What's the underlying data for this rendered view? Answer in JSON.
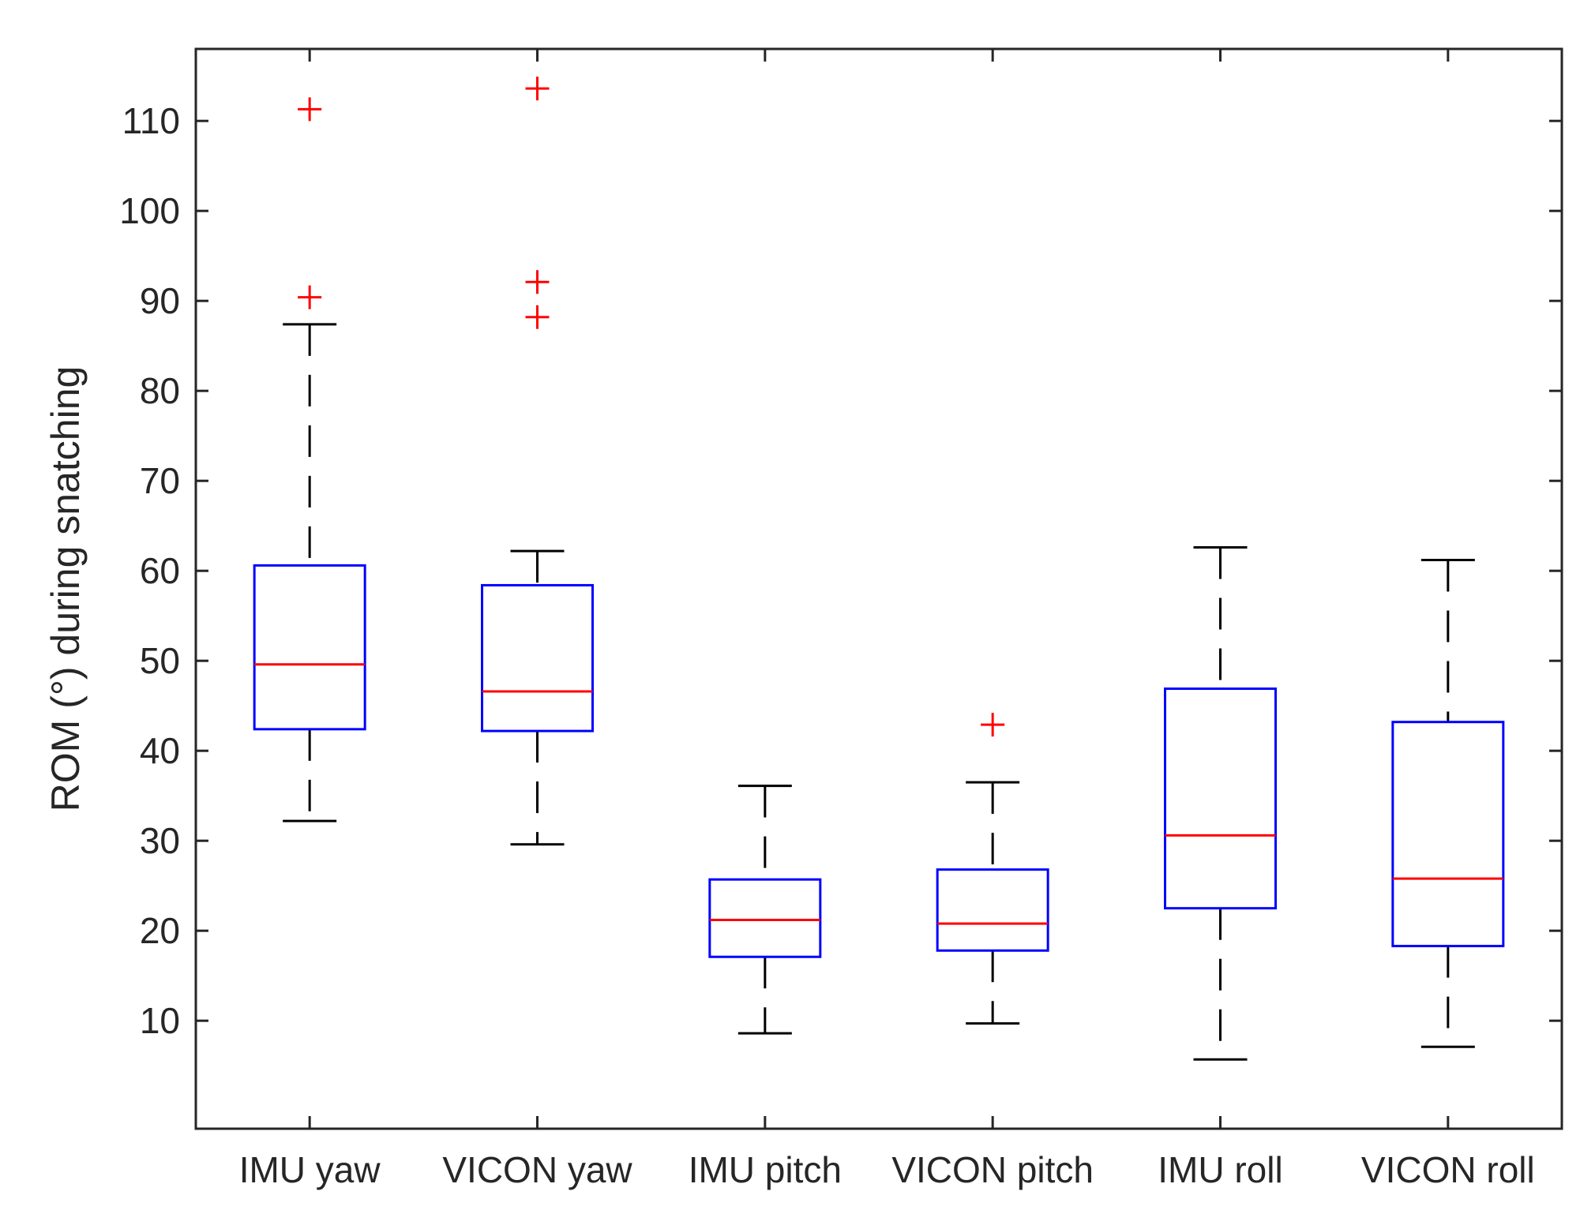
{
  "chart_data": {
    "type": "boxplot",
    "title": "",
    "xlabel": "",
    "ylabel": "ROM (°) during snatching",
    "ylim": [
      -2,
      118
    ],
    "yticks": [
      10,
      20,
      30,
      40,
      50,
      60,
      70,
      80,
      90,
      100,
      110
    ],
    "grid": false,
    "categories": [
      "IMU yaw",
      "VICON yaw",
      "IMU pitch",
      "VICON pitch",
      "IMU roll",
      "VICON roll"
    ],
    "boxes": [
      {
        "label": "IMU yaw",
        "whisker_low": 32.2,
        "q1": 42.4,
        "median": 49.6,
        "q3": 60.6,
        "whisker_high": 87.4,
        "outliers": [
          90.4,
          111.3
        ]
      },
      {
        "label": "VICON yaw",
        "whisker_low": 29.6,
        "q1": 42.2,
        "median": 46.6,
        "q3": 58.4,
        "whisker_high": 62.2,
        "outliers": [
          88.2,
          92.1,
          113.6
        ]
      },
      {
        "label": "IMU pitch",
        "whisker_low": 8.6,
        "q1": 17.1,
        "median": 21.2,
        "q3": 25.7,
        "whisker_high": 36.1,
        "outliers": []
      },
      {
        "label": "VICON pitch",
        "whisker_low": 9.7,
        "q1": 17.8,
        "median": 20.8,
        "q3": 26.8,
        "whisker_high": 36.5,
        "outliers": [
          42.9
        ]
      },
      {
        "label": "IMU roll",
        "whisker_low": 5.7,
        "q1": 22.5,
        "median": 30.6,
        "q3": 46.9,
        "whisker_high": 62.6,
        "outliers": []
      },
      {
        "label": "VICON roll",
        "whisker_low": 7.1,
        "q1": 18.3,
        "median": 25.8,
        "q3": 43.2,
        "whisker_high": 61.2,
        "outliers": []
      }
    ],
    "colors": {
      "box": "#0000ff",
      "median": "#ff0000",
      "whisker": "#000000",
      "outlier": "#ff0000",
      "axis": "#262626"
    }
  }
}
